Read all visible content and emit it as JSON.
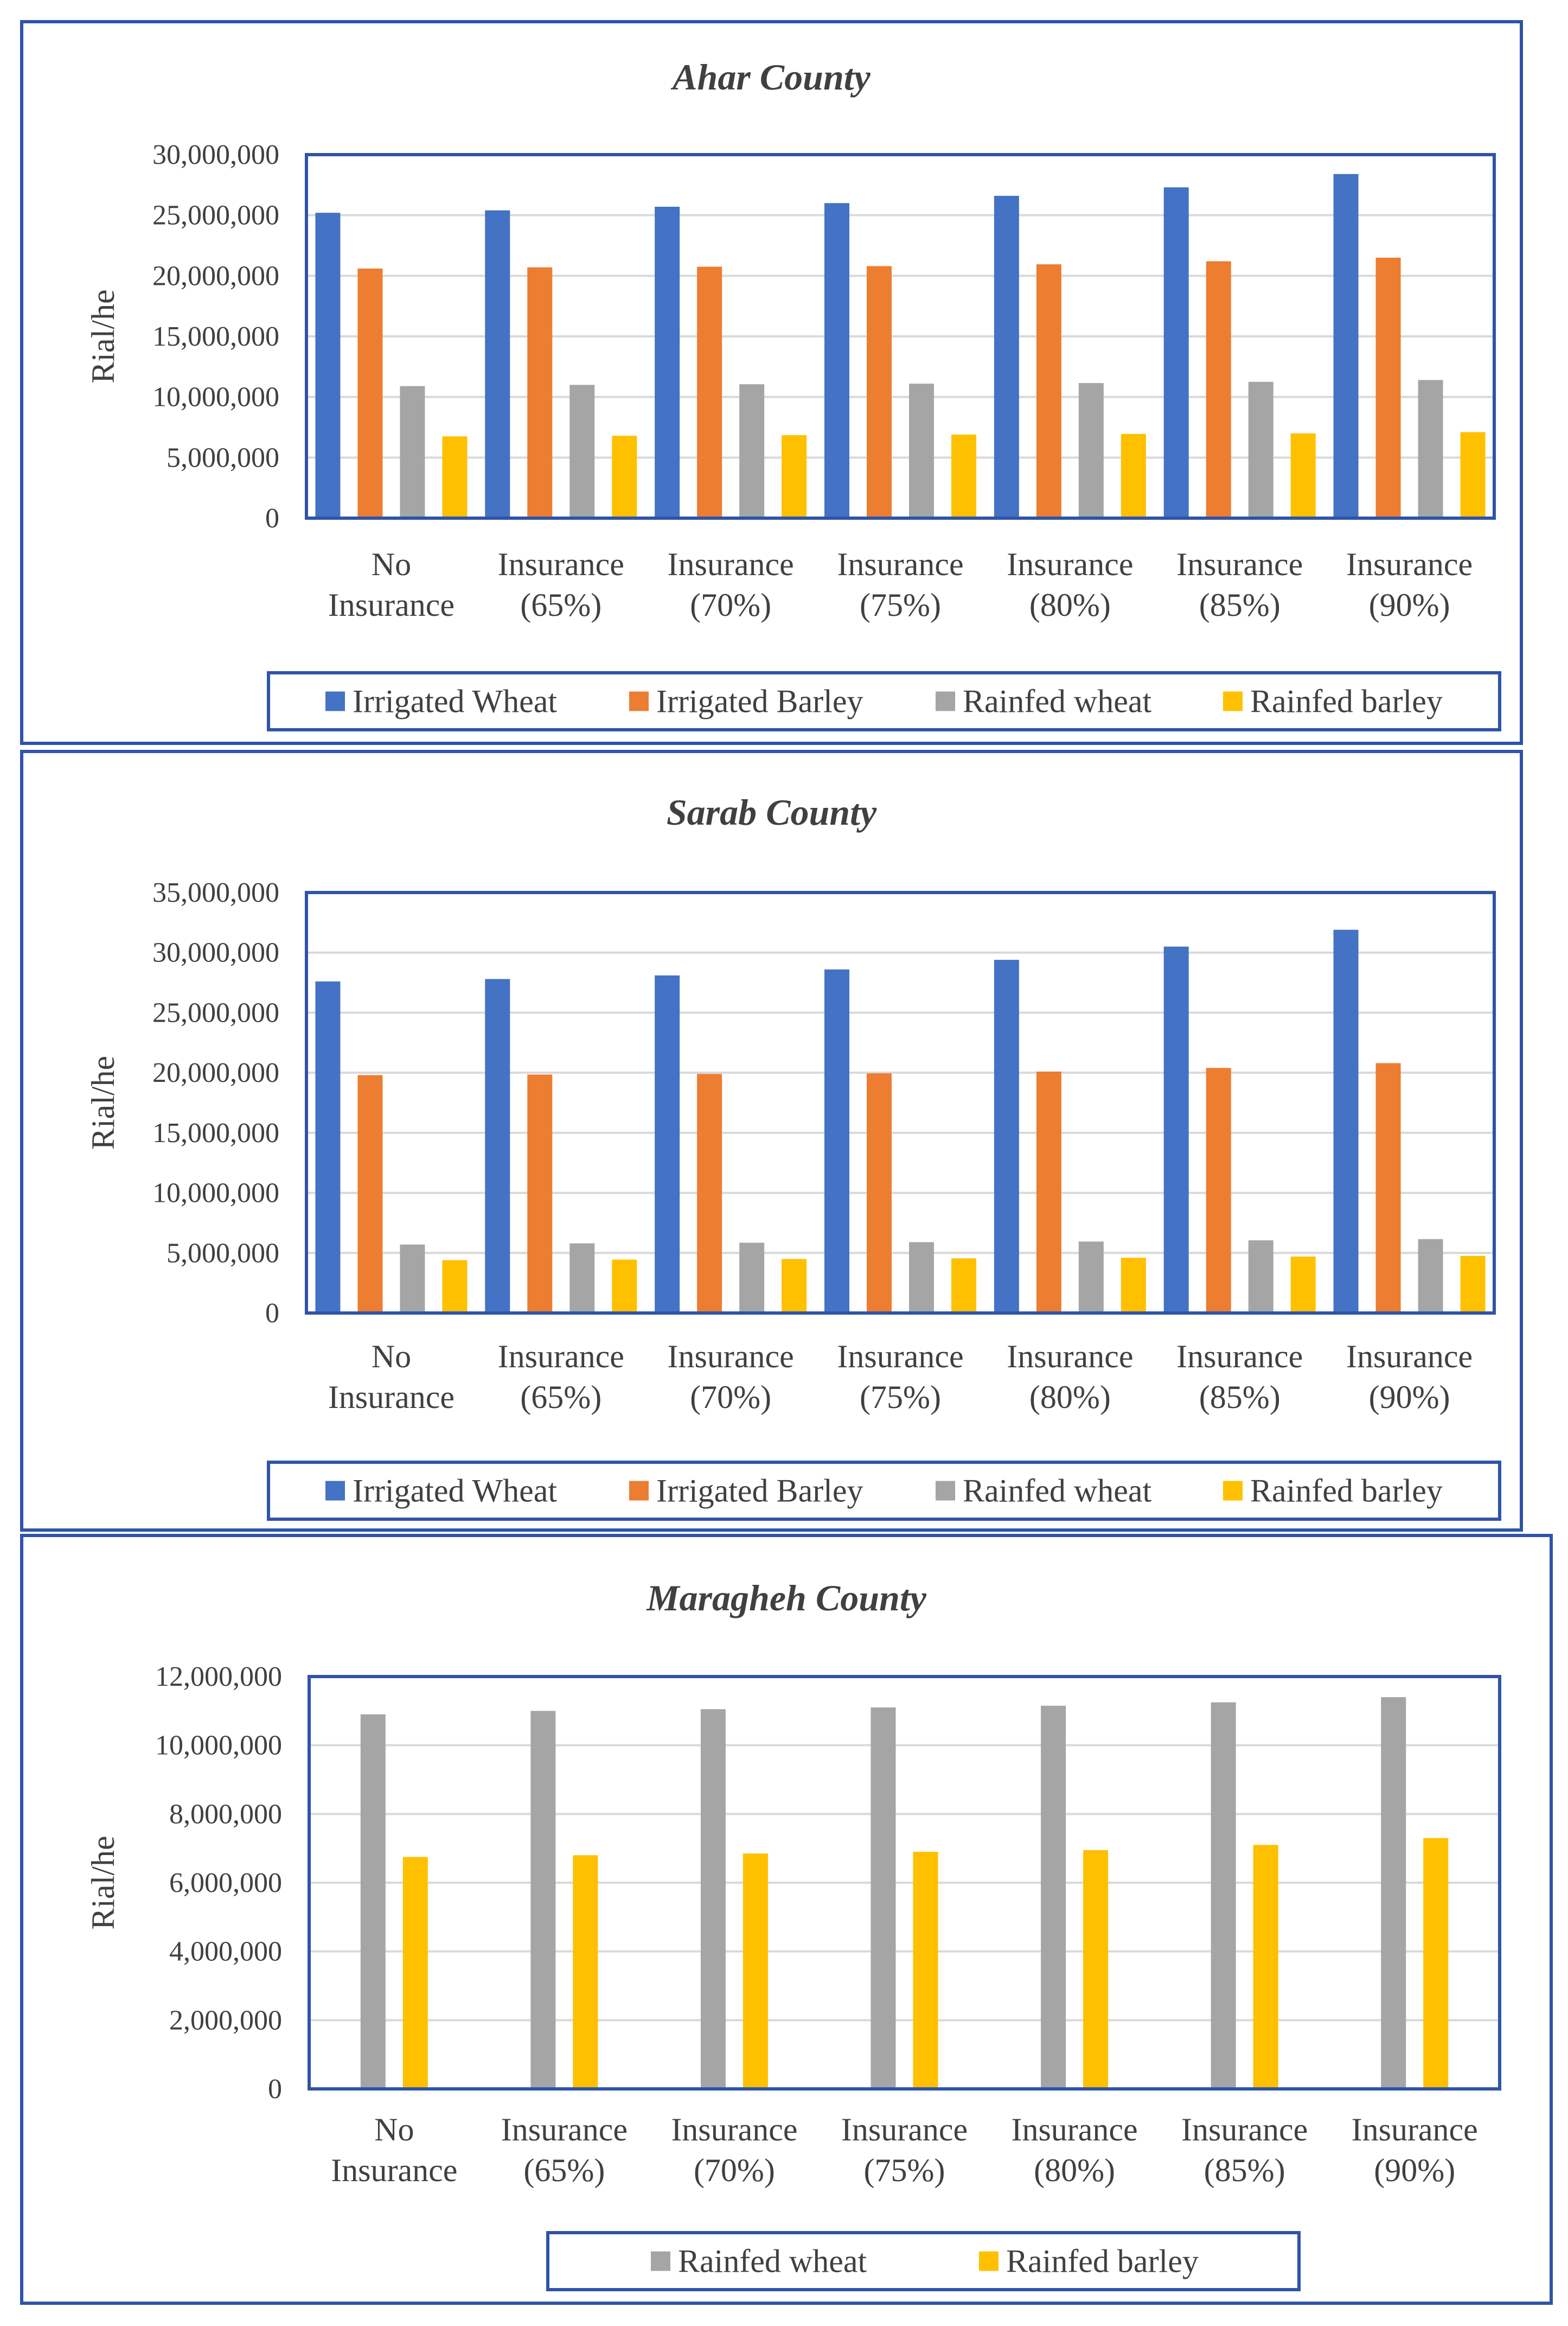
{
  "chart_data": [
    {
      "type": "bar",
      "title": "Ahar County",
      "ylabel": "Rial/he",
      "ylim": [
        0,
        30000000
      ],
      "yticks": [
        "0",
        "5,000,000",
        "10,000,000",
        "15,000,000",
        "20,000,000",
        "25,000,000",
        "30,000,000"
      ],
      "categories": [
        "No Insurance",
        "Insurance (65%)",
        "Insurance (70%)",
        "Insurance (75%)",
        "Insurance (80%)",
        "Insurance (85%)",
        "Insurance (90%)"
      ],
      "series": [
        {
          "name": "Irrigated Wheat",
          "color": "#4472C4",
          "values": [
            25200000,
            25400000,
            25700000,
            26000000,
            26600000,
            27300000,
            28400000
          ]
        },
        {
          "name": "Irrigated Barley",
          "color": "#ED7D31",
          "values": [
            20600000,
            20700000,
            20750000,
            20800000,
            20950000,
            21200000,
            21500000
          ]
        },
        {
          "name": "Rainfed wheat",
          "color": "#A5A5A5",
          "values": [
            10900000,
            11000000,
            11050000,
            11100000,
            11150000,
            11250000,
            11400000
          ]
        },
        {
          "name": "Rainfed barley",
          "color": "#FFC000",
          "values": [
            6750000,
            6800000,
            6850000,
            6900000,
            6950000,
            7000000,
            7100000
          ]
        }
      ]
    },
    {
      "type": "bar",
      "title": "Sarab County",
      "ylabel": "Rial/he",
      "ylim": [
        0,
        35000000
      ],
      "yticks": [
        "0",
        "5,000,000",
        "10,000,000",
        "15,000,000",
        "20,000,000",
        "25,000,000",
        "30,000,000",
        "35,000,000"
      ],
      "categories": [
        "No Insurance",
        "Insurance (65%)",
        "Insurance (70%)",
        "Insurance (75%)",
        "Insurance (80%)",
        "Insurance (85%)",
        "Insurance (90%)"
      ],
      "series": [
        {
          "name": "Irrigated Wheat",
          "color": "#4472C4",
          "values": [
            27600000,
            27800000,
            28100000,
            28600000,
            29400000,
            30500000,
            31900000
          ]
        },
        {
          "name": "Irrigated Barley",
          "color": "#ED7D31",
          "values": [
            19800000,
            19850000,
            19900000,
            19950000,
            20100000,
            20400000,
            20800000
          ]
        },
        {
          "name": "Rainfed wheat",
          "color": "#A5A5A5",
          "values": [
            5700000,
            5800000,
            5850000,
            5900000,
            5950000,
            6050000,
            6150000
          ]
        },
        {
          "name": "Rainfed barley",
          "color": "#FFC000",
          "values": [
            4400000,
            4450000,
            4500000,
            4550000,
            4600000,
            4700000,
            4750000
          ]
        }
      ]
    },
    {
      "type": "bar",
      "title": "Maragheh County",
      "ylabel": "Rial/he",
      "ylim": [
        0,
        12000000
      ],
      "yticks": [
        "0",
        "2,000,000",
        "4,000,000",
        "6,000,000",
        "8,000,000",
        "10,000,000",
        "12,000,000"
      ],
      "categories": [
        "No Insurance",
        "Insurance (65%)",
        "Insurance (70%)",
        "Insurance (75%)",
        "Insurance (80%)",
        "Insurance (85%)",
        "Insurance (90%)"
      ],
      "series": [
        {
          "name": "Rainfed wheat",
          "color": "#A5A5A5",
          "values": [
            10900000,
            11000000,
            11050000,
            11100000,
            11150000,
            11250000,
            11400000
          ]
        },
        {
          "name": "Rainfed barley",
          "color": "#FFC000",
          "values": [
            6750000,
            6800000,
            6850000,
            6900000,
            6950000,
            7100000,
            7300000
          ]
        }
      ]
    }
  ]
}
